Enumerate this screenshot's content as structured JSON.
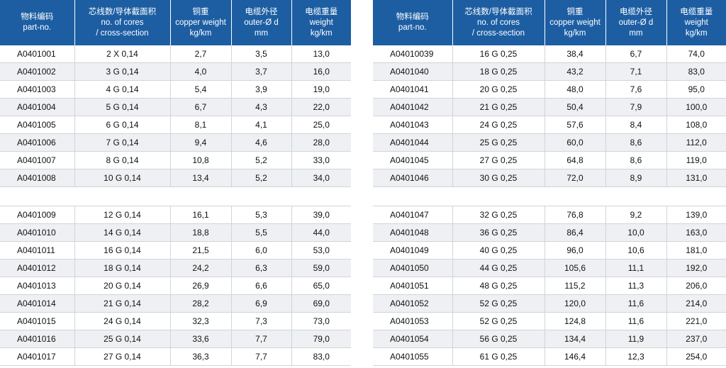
{
  "headers": {
    "part": [
      "物料编码",
      "part-no."
    ],
    "cores": [
      "芯线数/导体截面积",
      "no. of cores",
      "/ cross-section"
    ],
    "copper": [
      "铜重",
      "copper  weight",
      "kg/km"
    ],
    "outer": [
      "电缆外径",
      "outer-Ø  d",
      "mm"
    ],
    "weight": [
      "电缆重量",
      "weight",
      "kg/km"
    ]
  },
  "tables": [
    {
      "groups": [
        [
          [
            "A0401001",
            "2 X 0,14",
            "2,7",
            "3,5",
            "13,0"
          ],
          [
            "A0401002",
            "3 G 0,14",
            "4,0",
            "3,7",
            "16,0"
          ],
          [
            "A0401003",
            "4 G 0,14",
            "5,4",
            "3,9",
            "19,0"
          ],
          [
            "A0401004",
            "5 G 0,14",
            "6,7",
            "4,3",
            "22,0"
          ],
          [
            "A0401005",
            "6 G 0,14",
            "8,1",
            "4,1",
            "25,0"
          ],
          [
            "A0401006",
            "7 G 0,14",
            "9,4",
            "4,6",
            "28,0"
          ],
          [
            "A0401007",
            "8 G 0,14",
            "10,8",
            "5,2",
            "33,0"
          ],
          [
            "A0401008",
            "10 G 0,14",
            "13,4",
            "5,2",
            "34,0"
          ]
        ],
        [
          [
            "A0401009",
            "12 G 0,14",
            "16,1",
            "5,3",
            "39,0"
          ],
          [
            "A0401010",
            "14 G 0,14",
            "18,8",
            "5,5",
            "44,0"
          ],
          [
            "A0401011",
            "16 G 0,14",
            "21,5",
            "6,0",
            "53,0"
          ],
          [
            "A0401012",
            "18 G 0,14",
            "24,2",
            "6,3",
            "59,0"
          ],
          [
            "A0401013",
            "20 G 0,14",
            "26,9",
            "6,6",
            "65,0"
          ],
          [
            "A0401014",
            "21 G 0,14",
            "28,2",
            "6,9",
            "69,0"
          ],
          [
            "A0401015",
            "24 G 0,14",
            "32,3",
            "7,3",
            "73,0"
          ],
          [
            "A0401016",
            "25 G 0,14",
            "33,6",
            "7,7",
            "79,0"
          ],
          [
            "A0401017",
            "27 G 0,14",
            "36,3",
            "7,7",
            "83,0"
          ]
        ]
      ]
    },
    {
      "groups": [
        [
          [
            "A04010039",
            "16 G 0,25",
            "38,4",
            "6,7",
            "74,0"
          ],
          [
            "A0401040",
            "18 G 0,25",
            "43,2",
            "7,1",
            "83,0"
          ],
          [
            "A0401041",
            "20 G 0,25",
            "48,0",
            "7,6",
            "95,0"
          ],
          [
            "A0401042",
            "21 G 0,25",
            "50,4",
            "7,9",
            "100,0"
          ],
          [
            "A0401043",
            "24 G 0,25",
            "57,6",
            "8,4",
            "108,0"
          ],
          [
            "A0401044",
            "25 G 0,25",
            "60,0",
            "8,6",
            "112,0"
          ],
          [
            "A0401045",
            "27 G 0,25",
            "64,8",
            "8,6",
            "119,0"
          ],
          [
            "A0401046",
            "30 G 0,25",
            "72,0",
            "8,9",
            "131,0"
          ]
        ],
        [
          [
            "A0401047",
            "32 G 0,25",
            "76,8",
            "9,2",
            "139,0"
          ],
          [
            "A0401048",
            "36 G 0,25",
            "86,4",
            "10,0",
            "163,0"
          ],
          [
            "A0401049",
            "40 G 0,25",
            "96,0",
            "10,6",
            "181,0"
          ],
          [
            "A0401050",
            "44 G 0,25",
            "105,6",
            "11,1",
            "192,0"
          ],
          [
            "A0401051",
            "48 G 0,25",
            "115,2",
            "11,3",
            "206,0"
          ],
          [
            "A0401052",
            "52 G 0,25",
            "120,0",
            "11,6",
            "214,0"
          ],
          [
            "A0401053",
            "52 G 0,25",
            "124,8",
            "11,6",
            "221,0"
          ],
          [
            "A0401054",
            "56 G 0,25",
            "134,4",
            "11,9",
            "237,0"
          ],
          [
            "A0401055",
            "61 G 0,25",
            "146,4",
            "12,3",
            "254,0"
          ]
        ]
      ]
    }
  ]
}
